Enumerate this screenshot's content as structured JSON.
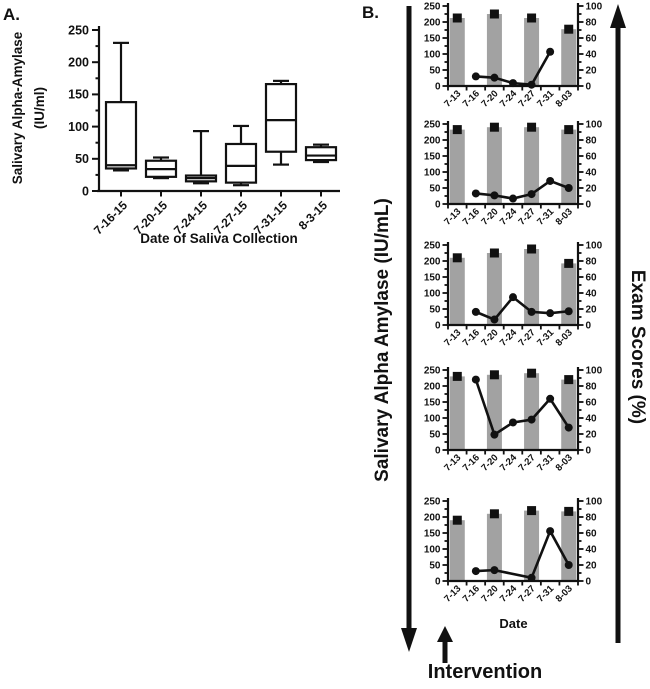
{
  "figure": {
    "panel_a_label": "A.",
    "panel_b_label": "B."
  },
  "colors": {
    "ink": "#111111",
    "bar_fill": "#a2a2a2",
    "box_fill": "#ffffff"
  },
  "chart_data": [
    {
      "id": "panel-a",
      "type": "boxplot",
      "ylabel_line1": "Salivary Alpha-Amylase",
      "ylabel_line2": "(IU/ml)",
      "xlabel": "Date of Saliva Collection",
      "ylim": [
        0,
        250
      ],
      "yticks": [
        0,
        50,
        100,
        150,
        200,
        250
      ],
      "minor_tick_step": 25,
      "categories": [
        "7-16-15",
        "7-20-15",
        "7-24-15",
        "7-27-15",
        "7-31-15",
        "8-3-15"
      ],
      "boxes": [
        {
          "whisker_low": 32,
          "q1": 35,
          "median": 40,
          "q3": 138,
          "whisker_high": 230
        },
        {
          "whisker_low": 20,
          "q1": 22,
          "median": 34,
          "q3": 47,
          "whisker_high": 52
        },
        {
          "whisker_low": 12,
          "q1": 15,
          "median": 20,
          "q3": 24,
          "whisker_high": 93
        },
        {
          "whisker_low": 9,
          "q1": 13,
          "median": 39,
          "q3": 73,
          "whisker_high": 101
        },
        {
          "whisker_low": 41,
          "q1": 61,
          "median": 110,
          "q3": 166,
          "whisker_high": 171
        },
        {
          "whisker_low": 45,
          "q1": 48,
          "median": 55,
          "q3": 68,
          "whisker_high": 72
        }
      ]
    },
    {
      "id": "panel-b",
      "type": "bar+line small-multiples",
      "left_axis_label": "Salivary Alpha Amylase (IU/mL)",
      "right_axis_label": "Exam Scores (%)",
      "xlabel": "Date",
      "annotation": "Intervention",
      "intervention_at": "7-16",
      "categories": [
        "7-13",
        "7-16",
        "7-20",
        "7-24",
        "7-27",
        "7-31",
        "8-03"
      ],
      "left_ylim": [
        0,
        250
      ],
      "left_yticks": [
        0,
        50,
        100,
        150,
        200,
        250
      ],
      "left_minor_step": 25,
      "right_ylim": [
        0,
        100
      ],
      "right_yticks": [
        0,
        20,
        40,
        60,
        80,
        100
      ],
      "right_minor_step": 10,
      "bar_series": "Exam Scores (%)",
      "line_series": "Salivary Alpha Amylase (IU/mL)",
      "subjects": [
        {
          "exam_scores_pct": [
            85,
            null,
            90,
            null,
            85,
            null,
            71
          ],
          "amylase_iu_ml": [
            null,
            30,
            26,
            9,
            4,
            107,
            null
          ]
        },
        {
          "exam_scores_pct": [
            93,
            null,
            96,
            null,
            96,
            null,
            93
          ],
          "amylase_iu_ml": [
            null,
            33,
            27,
            17,
            31,
            72,
            50
          ]
        },
        {
          "exam_scores_pct": [
            84,
            null,
            90,
            null,
            95,
            null,
            77
          ],
          "amylase_iu_ml": [
            null,
            41,
            17,
            87,
            41,
            37,
            43
          ]
        },
        {
          "exam_scores_pct": [
            92,
            null,
            94,
            null,
            96,
            null,
            88
          ],
          "amylase_iu_ml": [
            null,
            220,
            48,
            86,
            95,
            160,
            70
          ]
        },
        {
          "exam_scores_pct": [
            76,
            null,
            84,
            null,
            88,
            null,
            87
          ],
          "amylase_iu_ml": [
            null,
            31,
            34,
            null,
            10,
            156,
            50
          ]
        }
      ]
    }
  ]
}
